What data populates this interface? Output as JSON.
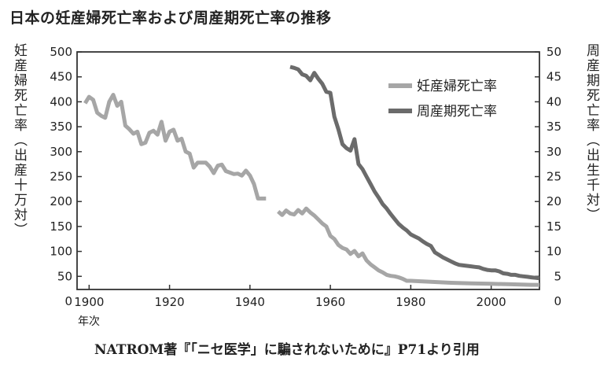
{
  "chart_data": {
    "type": "line",
    "title": "日本の妊産婦死亡率および周産期死亡率の推移",
    "ylabel_left": "妊産婦死亡率（出産十万対）",
    "ylabel_right": "周産期死亡率（出生千対）",
    "xlabel": "年次",
    "xticks": [
      1900,
      1920,
      1940,
      1960,
      1980,
      2000
    ],
    "xlim": [
      1897,
      2012
    ],
    "yticks_left": [
      0,
      50,
      100,
      150,
      200,
      250,
      300,
      350,
      400,
      450,
      500
    ],
    "ylim_left": [
      0,
      500
    ],
    "yticks_right": [
      0,
      5,
      10,
      15,
      20,
      25,
      30,
      35,
      40,
      45,
      50
    ],
    "ylim_right": [
      0,
      50
    ],
    "grid": false,
    "legend_position": "top-right",
    "caption": "NATROM著『「ニセ医学」に騙されないために』P71より引用",
    "series": [
      {
        "name": "妊産婦死亡率",
        "axis": "left",
        "color": "#a6a6a6",
        "segments": [
          [
            [
              1899,
              397
            ],
            [
              1900,
              410
            ],
            [
              1901,
              404
            ],
            [
              1902,
              378
            ],
            [
              1903,
              372
            ],
            [
              1904,
              368
            ],
            [
              1905,
              400
            ],
            [
              1906,
              414
            ],
            [
              1907,
              392
            ],
            [
              1908,
              400
            ],
            [
              1909,
              352
            ],
            [
              1910,
              345
            ],
            [
              1911,
              336
            ],
            [
              1912,
              340
            ],
            [
              1913,
              315
            ],
            [
              1914,
              318
            ],
            [
              1915,
              338
            ],
            [
              1916,
              342
            ],
            [
              1917,
              334
            ],
            [
              1918,
              360
            ],
            [
              1919,
              322
            ],
            [
              1920,
              340
            ],
            [
              1921,
              344
            ],
            [
              1922,
              322
            ],
            [
              1923,
              326
            ],
            [
              1924,
              300
            ],
            [
              1925,
              296
            ],
            [
              1926,
              268
            ],
            [
              1927,
              278
            ],
            [
              1928,
              278
            ],
            [
              1929,
              278
            ],
            [
              1930,
              270
            ],
            [
              1931,
              257
            ],
            [
              1932,
              272
            ],
            [
              1933,
              274
            ],
            [
              1934,
              261
            ],
            [
              1935,
              258
            ],
            [
              1936,
              255
            ],
            [
              1937,
              256
            ],
            [
              1938,
              252
            ],
            [
              1939,
              262
            ],
            [
              1940,
              252
            ],
            [
              1941,
              235
            ],
            [
              1942,
              206
            ],
            [
              1943,
              206
            ],
            [
              1944,
              206
            ]
          ],
          [
            [
              1947,
              180
            ],
            [
              1948,
              173
            ],
            [
              1949,
              182
            ],
            [
              1950,
              176
            ],
            [
              1951,
              174
            ],
            [
              1952,
              183
            ],
            [
              1953,
              176
            ],
            [
              1954,
              186
            ],
            [
              1955,
              178
            ],
            [
              1956,
              172
            ],
            [
              1957,
              164
            ],
            [
              1958,
              156
            ],
            [
              1959,
              150
            ],
            [
              1960,
              131
            ],
            [
              1961,
              125
            ],
            [
              1962,
              113
            ],
            [
              1963,
              107
            ],
            [
              1964,
              104
            ],
            [
              1965,
              95
            ],
            [
              1966,
              101
            ],
            [
              1967,
              90
            ],
            [
              1968,
              96
            ],
            [
              1969,
              82
            ],
            [
              1970,
              74
            ],
            [
              1971,
              68
            ],
            [
              1972,
              62
            ],
            [
              1973,
              58
            ],
            [
              1974,
              53
            ],
            [
              1975,
              51
            ],
            [
              1976,
              50
            ],
            [
              1977,
              48
            ],
            [
              1978,
              45
            ],
            [
              1979,
              41
            ],
            [
              1980,
              41
            ],
            [
              1985,
              39
            ],
            [
              1990,
              37
            ],
            [
              1995,
              36
            ],
            [
              2000,
              35
            ],
            [
              2005,
              34
            ],
            [
              2010,
              33
            ],
            [
              2012,
              33
            ]
          ]
        ]
      },
      {
        "name": "周産期死亡率",
        "axis": "right",
        "color": "#6b6b6b",
        "segments": [
          [
            [
              1950,
              47
            ],
            [
              1951,
              46.8
            ],
            [
              1952,
              46.5
            ],
            [
              1953,
              45.5
            ],
            [
              1954,
              45.2
            ],
            [
              1955,
              44.3
            ],
            [
              1956,
              45.8
            ],
            [
              1957,
              44.6
            ],
            [
              1958,
              43.6
            ],
            [
              1959,
              42
            ],
            [
              1960,
              41.8
            ],
            [
              1961,
              37
            ],
            [
              1962,
              34.5
            ],
            [
              1963,
              31.5
            ],
            [
              1964,
              30.7
            ],
            [
              1965,
              30.2
            ],
            [
              1966,
              32.5
            ],
            [
              1967,
              27.5
            ],
            [
              1968,
              26.5
            ],
            [
              1969,
              25
            ],
            [
              1970,
              23.5
            ],
            [
              1971,
              22
            ],
            [
              1972,
              20.8
            ],
            [
              1973,
              19.5
            ],
            [
              1974,
              18.6
            ],
            [
              1975,
              17.5
            ],
            [
              1976,
              16.5
            ],
            [
              1977,
              15.5
            ],
            [
              1978,
              14.8
            ],
            [
              1979,
              14.2
            ],
            [
              1980,
              13.4
            ],
            [
              1981,
              13
            ],
            [
              1982,
              12.6
            ],
            [
              1983,
              12
            ],
            [
              1984,
              11.5
            ],
            [
              1985,
              11.1
            ],
            [
              1986,
              9.8
            ],
            [
              1987,
              9.3
            ],
            [
              1988,
              8.8
            ],
            [
              1989,
              8.4
            ],
            [
              1990,
              8
            ],
            [
              1991,
              7.6
            ],
            [
              1992,
              7.3
            ],
            [
              1993,
              7.2
            ],
            [
              1994,
              7.1
            ],
            [
              1995,
              7
            ],
            [
              1996,
              6.9
            ],
            [
              1997,
              6.8
            ],
            [
              1998,
              6.5
            ],
            [
              1999,
              6.3
            ],
            [
              2000,
              6.2
            ],
            [
              2001,
              6.2
            ],
            [
              2002,
              6
            ],
            [
              2003,
              5.6
            ],
            [
              2004,
              5.5
            ],
            [
              2005,
              5.3
            ],
            [
              2006,
              5.3
            ],
            [
              2007,
              5.1
            ],
            [
              2008,
              5
            ],
            [
              2009,
              4.9
            ],
            [
              2010,
              4.8
            ],
            [
              2011,
              4.7
            ],
            [
              2012,
              4.6
            ]
          ]
        ]
      }
    ]
  }
}
